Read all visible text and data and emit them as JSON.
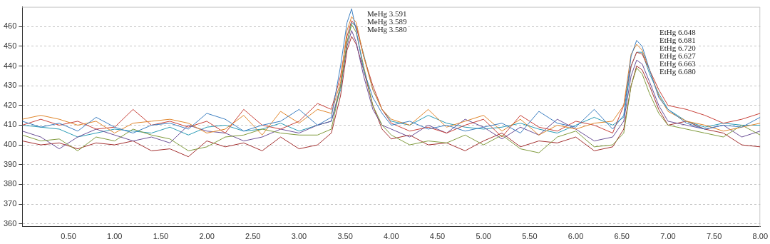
{
  "chart_data": {
    "type": "line",
    "x": [
      0,
      0.2,
      0.4,
      0.6,
      0.8,
      1.0,
      1.2,
      1.4,
      1.6,
      1.8,
      2.0,
      2.2,
      2.4,
      2.6,
      2.8,
      3.0,
      3.2,
      3.35,
      3.45,
      3.52,
      3.57,
      3.62,
      3.7,
      3.8,
      3.9,
      4.0,
      4.2,
      4.4,
      4.6,
      4.8,
      5.0,
      5.2,
      5.4,
      5.6,
      5.8,
      6.0,
      6.2,
      6.4,
      6.52,
      6.6,
      6.66,
      6.72,
      6.8,
      6.9,
      7.0,
      7.2,
      7.4,
      7.6,
      7.8,
      8.0
    ],
    "series": [
      {
        "color": "#3d7fc1",
        "values": [
          412,
          409,
          411,
          407,
          414,
          409,
          406,
          410,
          411,
          408,
          416,
          413,
          407,
          410,
          412,
          418,
          410,
          414,
          440,
          462,
          469,
          458,
          438,
          424,
          416,
          410,
          412,
          408,
          410,
          407,
          409,
          411,
          406,
          417,
          411,
          409,
          418,
          408,
          415,
          445,
          453,
          450,
          438,
          424,
          418,
          411,
          408,
          410,
          409,
          414
        ]
      },
      {
        "color": "#e0862c",
        "values": [
          413,
          415,
          413,
          410,
          412,
          406,
          411,
          412,
          413,
          411,
          406,
          408,
          415,
          405,
          417,
          411,
          418,
          416,
          432,
          458,
          465,
          462,
          445,
          428,
          418,
          413,
          410,
          418,
          409,
          412,
          415,
          407,
          413,
          405,
          410,
          408,
          411,
          412,
          420,
          446,
          451,
          448,
          438,
          425,
          417,
          412,
          410,
          407,
          409,
          411
        ]
      },
      {
        "color": "#7f9a3c",
        "values": [
          405,
          402,
          403,
          397,
          404,
          402,
          408,
          405,
          403,
          397,
          399,
          404,
          405,
          408,
          406,
          405,
          405,
          408,
          430,
          452,
          461,
          457,
          440,
          420,
          410,
          405,
          400,
          402,
          401,
          405,
          400,
          405,
          398,
          396,
          404,
          407,
          399,
          400,
          406,
          430,
          439,
          436,
          426,
          416,
          410,
          408,
          406,
          404,
          410,
          405
        ]
      },
      {
        "color": "#c8423a",
        "values": [
          410,
          413,
          410,
          412,
          408,
          409,
          418,
          410,
          412,
          409,
          412,
          406,
          418,
          410,
          408,
          412,
          421,
          418,
          435,
          455,
          463,
          460,
          445,
          430,
          418,
          411,
          407,
          409,
          406,
          410,
          413,
          404,
          415,
          409,
          407,
          412,
          410,
          406,
          420,
          440,
          447,
          446,
          438,
          428,
          420,
          418,
          415,
          411,
          413,
          416
        ]
      },
      {
        "color": "#6b4f96",
        "values": [
          407,
          404,
          398,
          404,
          408,
          405,
          402,
          404,
          401,
          410,
          407,
          406,
          402,
          404,
          408,
          406,
          410,
          412,
          430,
          450,
          458,
          452,
          435,
          418,
          410,
          408,
          404,
          410,
          406,
          413,
          409,
          403,
          409,
          405,
          413,
          408,
          402,
          404,
          412,
          435,
          443,
          441,
          432,
          420,
          412,
          410,
          408,
          410,
          404,
          407
        ]
      },
      {
        "color": "#2a9bb5",
        "values": [
          410,
          409,
          408,
          404,
          406,
          408,
          407,
          406,
          409,
          405,
          409,
          410,
          407,
          408,
          411,
          407,
          410,
          412,
          428,
          452,
          462,
          460,
          446,
          428,
          418,
          412,
          410,
          415,
          411,
          409,
          408,
          409,
          411,
          408,
          406,
          410,
          414,
          410,
          414,
          440,
          447,
          447,
          436,
          426,
          418,
          412,
          409,
          411,
          410,
          410
        ]
      },
      {
        "color": "#a33030",
        "values": [
          402,
          400,
          401,
          398,
          401,
          400,
          402,
          397,
          398,
          394,
          402,
          399,
          401,
          397,
          404,
          398,
          400,
          406,
          425,
          448,
          455,
          451,
          438,
          420,
          408,
          403,
          405,
          400,
          401,
          397,
          402,
          406,
          399,
          402,
          401,
          404,
          397,
          399,
          408,
          430,
          440,
          438,
          430,
          418,
          410,
          412,
          408,
          406,
          400,
          399
        ]
      }
    ],
    "xlim": [
      0,
      8
    ],
    "ylim": [
      358.5,
      470
    ],
    "xticks": [
      {
        "value": 0.5,
        "label": "0.50"
      },
      {
        "value": 1,
        "label": "1.00"
      },
      {
        "value": 1.5,
        "label": "1.50"
      },
      {
        "value": 2,
        "label": "2.00"
      },
      {
        "value": 2.5,
        "label": "2.50"
      },
      {
        "value": 3,
        "label": "3.00"
      },
      {
        "value": 3.5,
        "label": "3.50"
      },
      {
        "value": 4,
        "label": "4.00"
      },
      {
        "value": 4.5,
        "label": "4.50"
      },
      {
        "value": 5,
        "label": "5.00"
      },
      {
        "value": 5.5,
        "label": "5.50"
      },
      {
        "value": 6,
        "label": "6.00"
      },
      {
        "value": 6.5,
        "label": "6.50"
      },
      {
        "value": 7,
        "label": "7.00"
      },
      {
        "value": 7.5,
        "label": "7.50"
      },
      {
        "value": 8,
        "label": "8.00"
      }
    ],
    "yticks": [
      360,
      370,
      380,
      390,
      400,
      410,
      420,
      430,
      440,
      450,
      460
    ],
    "grid": "y",
    "legend": false,
    "annotations": [
      "MeHg 3.591",
      "MeHg 3.589",
      "MeHg 3.580",
      "EtHg 6.648",
      "EtHg 6.681",
      "EtHg 6.720",
      "EtHg 6.627",
      "EtHg 6.663",
      "EtHg 6.680"
    ]
  }
}
